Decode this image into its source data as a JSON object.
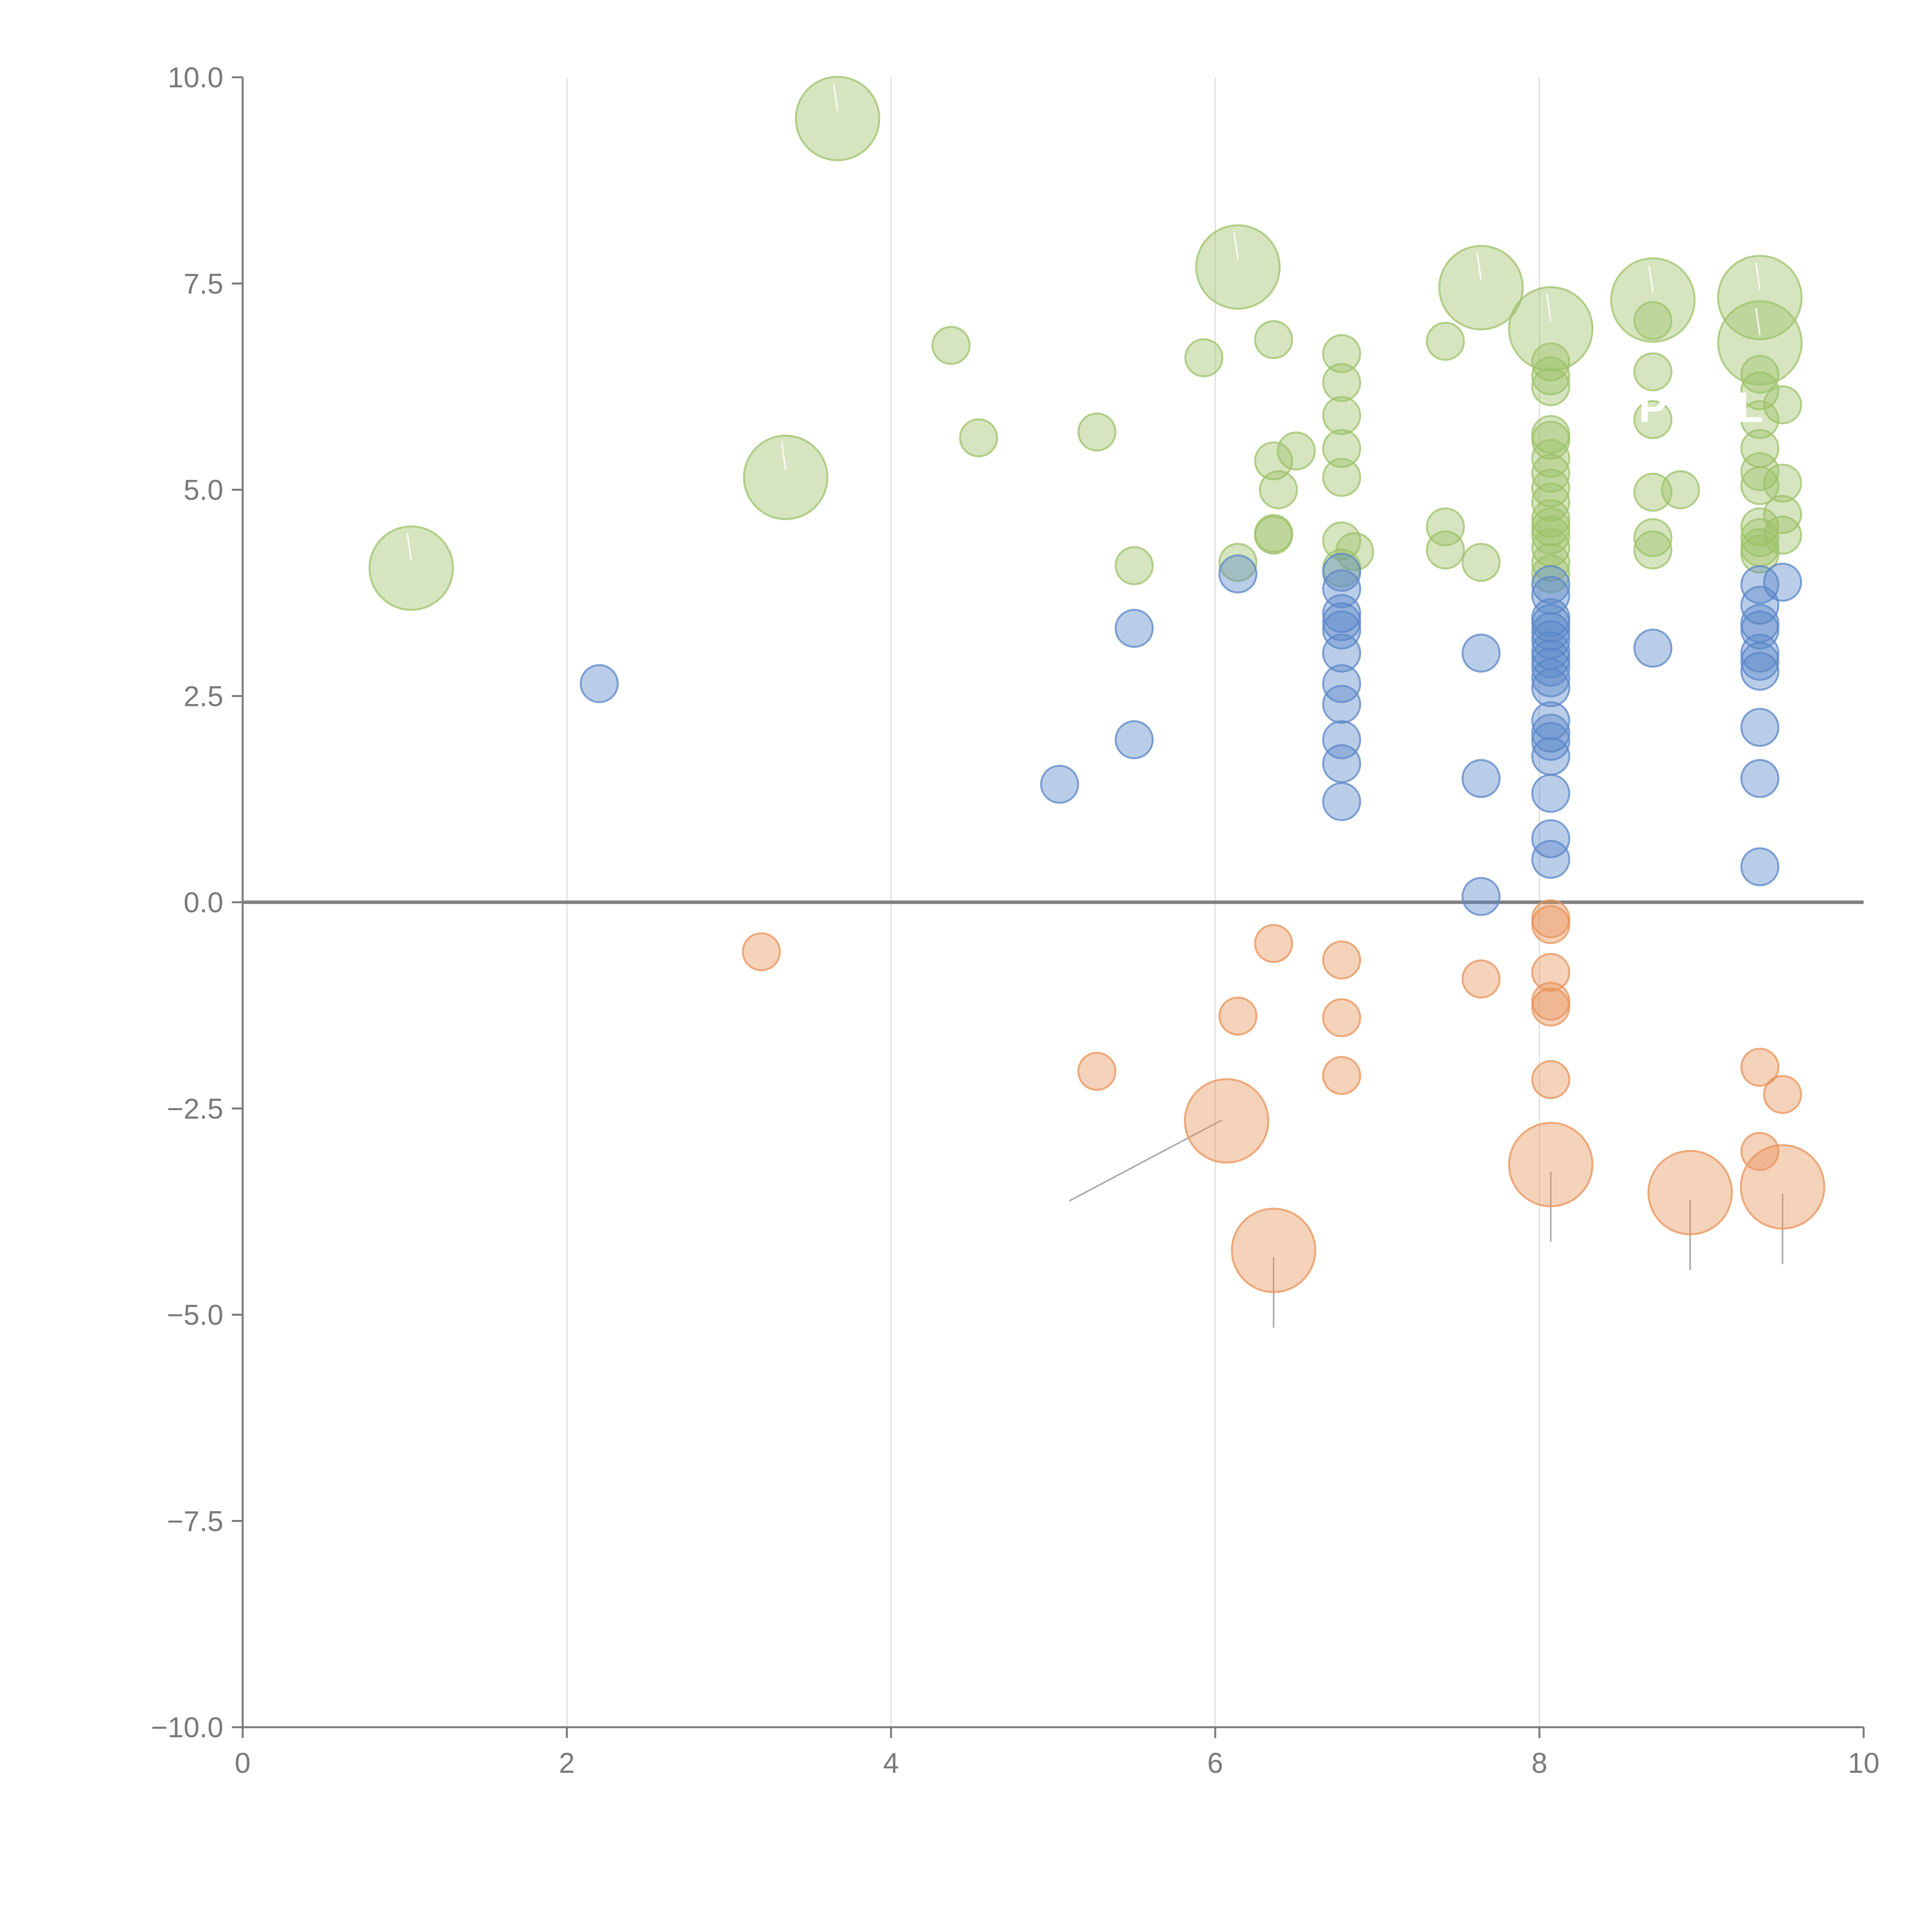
{
  "chart_data": {
    "type": "scatter",
    "title": "",
    "xlabel": "",
    "ylabel": "",
    "xlim": [
      0,
      10
    ],
    "ylim": [
      -10,
      10
    ],
    "x_ticks": [
      "0",
      "2",
      "4",
      "6",
      "8",
      "10"
    ],
    "y_ticks": [
      "10.0",
      "7.5",
      "5.0",
      "2.5",
      "0.0",
      "−2.5",
      "−5.0",
      "−7.5",
      "−10.0"
    ],
    "x_tick_values": [
      0,
      2,
      4,
      6,
      8,
      10
    ],
    "y_tick_values": [
      10,
      7.5,
      5,
      2.5,
      0,
      -2.5,
      -5,
      -7.5,
      -10
    ],
    "grid": "vertical",
    "colors": {
      "green": "#9dc26a",
      "blue": "#5b87c8",
      "orange": "#e8935a"
    },
    "inner_letters": [
      {
        "text": "P",
        "x": 8.7,
        "y": 6.0
      },
      {
        "text": "L",
        "x": 9.3,
        "y": 6.0
      }
    ],
    "series": [
      {
        "name": "green",
        "color": "#9dc26a",
        "points": [
          [
            3.67,
            9.5,
            "big"
          ],
          [
            6.14,
            7.7,
            "big"
          ],
          [
            7.64,
            7.45,
            "big"
          ],
          [
            8.7,
            7.3,
            "big"
          ],
          [
            9.36,
            7.33,
            "big"
          ],
          [
            8.07,
            6.95,
            "big"
          ],
          [
            9.36,
            6.78,
            "big"
          ],
          [
            3.35,
            5.15,
            "big"
          ],
          [
            1.04,
            4.05,
            "big"
          ],
          [
            4.37,
            6.75
          ],
          [
            6.36,
            6.82
          ],
          [
            5.93,
            6.6
          ],
          [
            6.78,
            6.65
          ],
          [
            6.78,
            6.3
          ],
          [
            6.78,
            5.9
          ],
          [
            6.78,
            5.5
          ],
          [
            6.78,
            5.15
          ],
          [
            7.42,
            6.8
          ],
          [
            4.54,
            5.63
          ],
          [
            5.27,
            5.7
          ],
          [
            6.36,
            5.35
          ],
          [
            6.5,
            5.47
          ],
          [
            6.39,
            5.0
          ],
          [
            6.36,
            4.47
          ],
          [
            6.36,
            4.45
          ],
          [
            6.78,
            4.38
          ],
          [
            6.86,
            4.25
          ],
          [
            6.78,
            4.05
          ],
          [
            5.5,
            4.08
          ],
          [
            6.14,
            4.12
          ],
          [
            7.42,
            4.55
          ],
          [
            7.42,
            4.27
          ],
          [
            7.64,
            4.12
          ],
          [
            8.7,
            7.05
          ],
          [
            8.7,
            6.43
          ],
          [
            8.7,
            5.85
          ],
          [
            8.7,
            4.97
          ],
          [
            8.87,
            5.0
          ],
          [
            8.7,
            4.42
          ],
          [
            8.7,
            4.27
          ],
          [
            8.07,
            6.55
          ],
          [
            8.07,
            6.38
          ],
          [
            8.07,
            6.25
          ],
          [
            8.07,
            5.67
          ],
          [
            8.07,
            5.6
          ],
          [
            8.07,
            5.38
          ],
          [
            8.07,
            5.2
          ],
          [
            8.07,
            5.02
          ],
          [
            8.07,
            4.85
          ],
          [
            8.07,
            4.65
          ],
          [
            8.07,
            4.55
          ],
          [
            8.07,
            4.45
          ],
          [
            8.07,
            4.3
          ],
          [
            8.07,
            4.12
          ],
          [
            8.07,
            3.98
          ],
          [
            9.36,
            6.4
          ],
          [
            9.36,
            6.2
          ],
          [
            9.5,
            6.03
          ],
          [
            9.36,
            5.85
          ],
          [
            9.36,
            5.5
          ],
          [
            9.36,
            5.22
          ],
          [
            9.36,
            5.05
          ],
          [
            9.5,
            5.08
          ],
          [
            9.5,
            4.7
          ],
          [
            9.36,
            4.55
          ],
          [
            9.36,
            4.42
          ],
          [
            9.36,
            4.3
          ],
          [
            9.5,
            4.45
          ],
          [
            9.36,
            4.22
          ]
        ]
      },
      {
        "name": "blue",
        "color": "#5b87c8",
        "points": [
          [
            2.2,
            2.65
          ],
          [
            5.5,
            3.32
          ],
          [
            5.5,
            1.97
          ],
          [
            5.04,
            1.43
          ],
          [
            6.14,
            3.98
          ],
          [
            6.78,
            4.0
          ],
          [
            6.78,
            3.8
          ],
          [
            6.78,
            3.5
          ],
          [
            6.78,
            3.4
          ],
          [
            6.78,
            3.3
          ],
          [
            6.78,
            3.02
          ],
          [
            6.78,
            2.65
          ],
          [
            6.78,
            2.4
          ],
          [
            6.78,
            1.97
          ],
          [
            6.78,
            1.68
          ],
          [
            6.78,
            1.22
          ],
          [
            7.64,
            3.02
          ],
          [
            7.64,
            1.5
          ],
          [
            7.64,
            0.07
          ],
          [
            8.7,
            3.08
          ],
          [
            8.07,
            3.85
          ],
          [
            8.07,
            3.72
          ],
          [
            8.07,
            3.45
          ],
          [
            8.07,
            3.38
          ],
          [
            8.07,
            3.28
          ],
          [
            8.07,
            3.18
          ],
          [
            8.07,
            3.05
          ],
          [
            8.07,
            2.95
          ],
          [
            8.07,
            2.85
          ],
          [
            8.07,
            2.72
          ],
          [
            8.07,
            2.6
          ],
          [
            8.07,
            2.2
          ],
          [
            8.07,
            2.05
          ],
          [
            8.07,
            1.95
          ],
          [
            8.07,
            1.77
          ],
          [
            8.07,
            1.32
          ],
          [
            8.07,
            0.77
          ],
          [
            8.07,
            0.52
          ],
          [
            9.36,
            3.85
          ],
          [
            9.36,
            3.6
          ],
          [
            9.36,
            3.38
          ],
          [
            9.36,
            3.3
          ],
          [
            9.36,
            3.02
          ],
          [
            9.36,
            2.92
          ],
          [
            9.36,
            2.8
          ],
          [
            9.36,
            2.12
          ],
          [
            9.36,
            1.5
          ],
          [
            9.36,
            0.43
          ],
          [
            9.5,
            3.88
          ]
        ]
      },
      {
        "name": "orange",
        "color": "#e8935a",
        "points": [
          [
            6.07,
            -2.65,
            "big"
          ],
          [
            6.36,
            -4.22,
            "big"
          ],
          [
            8.07,
            -3.18,
            "big"
          ],
          [
            8.93,
            -3.52,
            "big"
          ],
          [
            9.5,
            -3.45,
            "big"
          ],
          [
            3.2,
            -0.6
          ],
          [
            6.36,
            -0.5
          ],
          [
            6.14,
            -1.38
          ],
          [
            5.27,
            -2.05
          ],
          [
            6.78,
            -0.7
          ],
          [
            6.78,
            -1.4
          ],
          [
            6.78,
            -2.1
          ],
          [
            7.64,
            -0.93
          ],
          [
            8.07,
            -0.2
          ],
          [
            8.07,
            -0.27
          ],
          [
            8.07,
            -0.85
          ],
          [
            8.07,
            -1.2
          ],
          [
            8.07,
            -1.27
          ],
          [
            8.07,
            -2.15
          ],
          [
            9.36,
            -2.0
          ],
          [
            9.36,
            -3.02
          ],
          [
            9.5,
            -2.33
          ]
        ]
      }
    ]
  }
}
